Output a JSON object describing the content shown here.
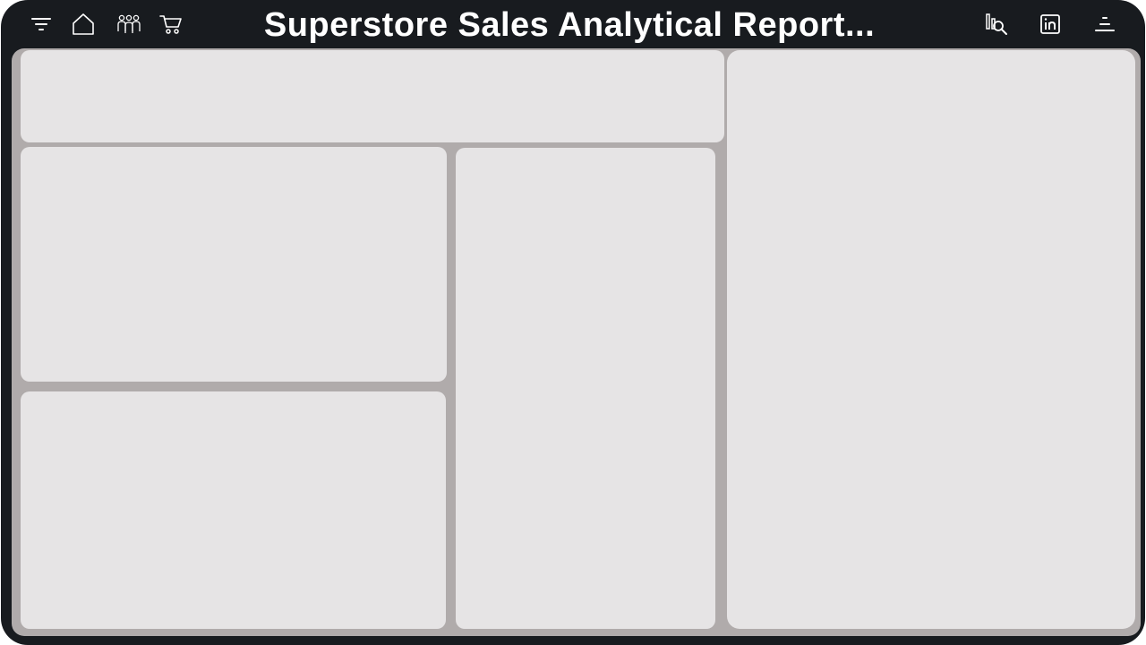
{
  "header": {
    "title": "Superstore Sales Analytical Report...",
    "left_icons": [
      "filter-icon",
      "home-icon",
      "customers-icon",
      "cart-icon"
    ],
    "right_icons": [
      "analysis-icon",
      "linkedin-icon",
      "menu-icon"
    ]
  },
  "colors": {
    "frame": "#181b1f",
    "canvas": "#b0abab",
    "panel": "#e6e4e5",
    "text": "#ffffff"
  }
}
